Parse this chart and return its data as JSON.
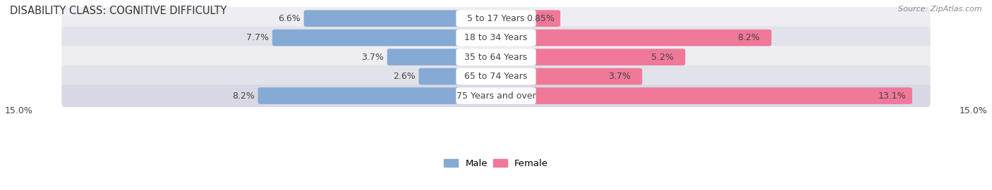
{
  "title": "DISABILITY CLASS: COGNITIVE DIFFICULTY",
  "source": "Source: ZipAtlas.com",
  "categories": [
    "5 to 17 Years",
    "18 to 34 Years",
    "35 to 64 Years",
    "65 to 74 Years",
    "75 Years and over"
  ],
  "male_values": [
    6.6,
    7.7,
    3.7,
    2.6,
    8.2
  ],
  "female_values": [
    0.85,
    8.2,
    5.2,
    3.7,
    13.1
  ],
  "male_color": "#85aad4",
  "female_color": "#f07898",
  "row_bg_colors": [
    "#ededf2",
    "#e2e2ea",
    "#ededf2",
    "#e2e2ea",
    "#d8d8e4"
  ],
  "axis_max": 15.0,
  "label_fontsize": 9.0,
  "title_fontsize": 10.5,
  "source_fontsize": 8.0,
  "legend_labels": [
    "Male",
    "Female"
  ]
}
